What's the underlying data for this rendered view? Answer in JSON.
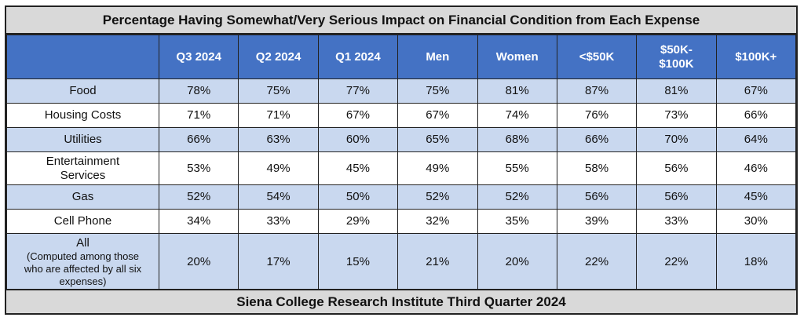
{
  "chart_data": {
    "type": "table",
    "title": "Percentage Having Somewhat/Very Serious Impact on Financial Condition from Each Expense",
    "columns": [
      "Q3 2024",
      "Q2 2024",
      "Q1 2024",
      "Men",
      "Women",
      "<$50K",
      "$50K-\n$100K",
      "$100K+"
    ],
    "rows": [
      {
        "label": "Food",
        "values": [
          "78%",
          "75%",
          "77%",
          "75%",
          "81%",
          "87%",
          "81%",
          "67%"
        ]
      },
      {
        "label": "Housing Costs",
        "values": [
          "71%",
          "71%",
          "67%",
          "67%",
          "74%",
          "76%",
          "73%",
          "66%"
        ]
      },
      {
        "label": "Utilities",
        "values": [
          "66%",
          "63%",
          "60%",
          "65%",
          "68%",
          "66%",
          "70%",
          "64%"
        ]
      },
      {
        "label": "Entertainment\nServices",
        "values": [
          "53%",
          "49%",
          "45%",
          "49%",
          "55%",
          "58%",
          "56%",
          "46%"
        ]
      },
      {
        "label": "Gas",
        "values": [
          "52%",
          "54%",
          "50%",
          "52%",
          "52%",
          "56%",
          "56%",
          "45%"
        ]
      },
      {
        "label": "Cell Phone",
        "values": [
          "34%",
          "33%",
          "29%",
          "32%",
          "35%",
          "39%",
          "33%",
          "30%"
        ]
      },
      {
        "label": "All",
        "sublabel": "(Computed among those\nwho are affected by all six\nexpenses)",
        "values": [
          "20%",
          "17%",
          "15%",
          "21%",
          "20%",
          "22%",
          "22%",
          "18%"
        ]
      }
    ],
    "footer": "Siena College Research Institute Third Quarter 2024"
  },
  "colors": {
    "header_bg": "#4472c4",
    "band_bg": "#c9d8ef",
    "title_bg": "#d9d9d9"
  }
}
